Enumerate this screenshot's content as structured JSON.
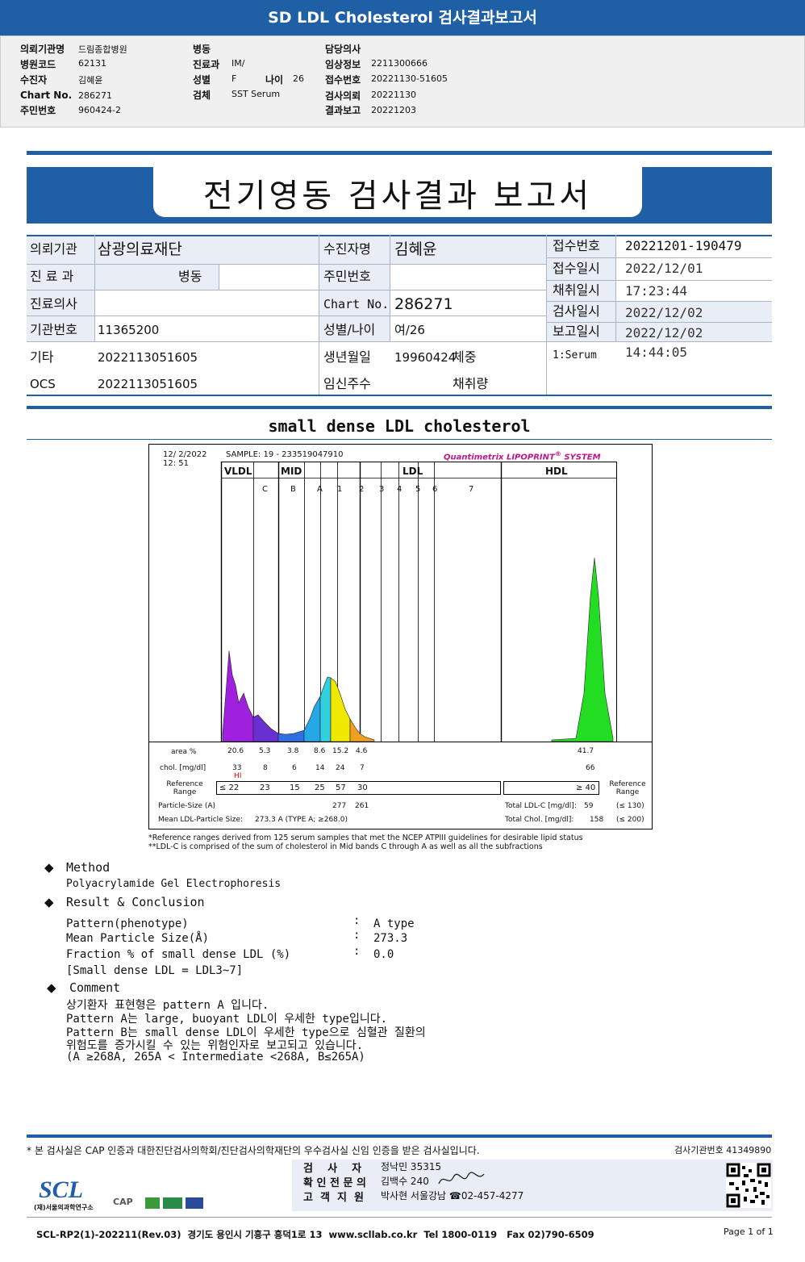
{
  "banner": {
    "title": "SD LDL Cholesterol 검사결과보고서"
  },
  "top_info": {
    "col1": [
      {
        "label": "의뢰기관명",
        "value": "드림종합병원"
      },
      {
        "label": "병원코드",
        "value": "62131"
      },
      {
        "label": "수진자",
        "value": "김혜윤"
      },
      {
        "label": "Chart No.",
        "value": "286271"
      },
      {
        "label": "주민번호",
        "value": "960424-2"
      }
    ],
    "col2": [
      {
        "label": "병동",
        "value": ""
      },
      {
        "label": "진료과",
        "value": "IM/"
      },
      {
        "label": "성별",
        "value": "F"
      },
      {
        "label": "검체",
        "value": "SST Serum"
      }
    ],
    "age_label": "나이",
    "age_value": "26",
    "col3": [
      {
        "label": "담당의사",
        "value": ""
      },
      {
        "label": "임상정보",
        "value": "2211300666"
      },
      {
        "label": "접수번호",
        "value": "20221130-51605"
      },
      {
        "label": "검사의뢰",
        "value": "20221130"
      },
      {
        "label": "결과보고",
        "value": "20221203"
      }
    ]
  },
  "report": {
    "title": "전기영동 검사결과 보고서"
  },
  "info": {
    "r1": {
      "l1": "의뢰기관",
      "v1": "삼광의료재단",
      "l2": "수진자명",
      "v2": "김혜윤",
      "l3": "접수번호",
      "v3": "20221201-190479"
    },
    "r2": {
      "l1": "진 료 과",
      "v1": "병동",
      "l2": "주민번호",
      "v2": "",
      "l3": "접수일시",
      "v3": "2022/12/01 17:23:44"
    },
    "r2b": {
      "l3": "채취일시",
      "v3": ""
    },
    "r3": {
      "l1": "진료의사",
      "v1": "",
      "l2": "Chart No.",
      "v2": "286271",
      "l3": "검사일시",
      "v3": "2022/12/02"
    },
    "r4": {
      "l1": "기관번호",
      "v1": "11365200",
      "l2": "성별/나이",
      "v2": "여/26",
      "l3": "보고일시",
      "v3": "2022/12/02 14:44:05"
    },
    "r5": {
      "l1": "기타",
      "v1": "2022113051605",
      "l2": "생년월일",
      "v2": "19960424",
      "v2b": "체중",
      "v3": "1:Serum"
    },
    "r6": {
      "l1": "OCS",
      "v1": "2022113051605",
      "l2": "임신주수",
      "v2b": "채취량"
    }
  },
  "section_title": "small dense LDL cholesterol",
  "chart_data": {
    "type": "area",
    "datetime": "12/ 2/2022",
    "time": "12: 51",
    "sample": "SAMPLE:  19 - 233519047910",
    "brand": "Quantimetrix LIPOPRINT",
    "brand_mark": "®",
    "brand_suffix": " SYSTEM",
    "groups": [
      "VLDL",
      "MID",
      "LDL",
      "HDL"
    ],
    "bands": [
      "C",
      "B",
      "A",
      "1",
      "2",
      "3",
      "4",
      "5",
      "6",
      "7"
    ],
    "area_label": "area %",
    "area_values": [
      "20.6",
      "5.3",
      "3.8",
      "8.6",
      "15.2",
      "4.6",
      "41.7"
    ],
    "chol_label": "chol. [mg/dl]",
    "chol_values": [
      "33",
      "8",
      "6",
      "14",
      "24",
      "7",
      "66"
    ],
    "hi_flag": "HI",
    "ref_label": "Reference Range",
    "ref_values": [
      "≤ 22",
      "23",
      "15",
      "25",
      "57",
      "30"
    ],
    "ref_hdl": "≥ 40",
    "particle_label": "Particle-Size (A)",
    "particle_values": [
      "277",
      "261"
    ],
    "mean_label": "Mean LDL-Particle Size:",
    "mean_value": "273.3  A   (TYPE A; ≥268.0)",
    "total_ldl_label": "Total LDL-C [mg/dl]:",
    "total_ldl_value": "59",
    "total_ldl_ref": "(≤ 130)",
    "total_chol_label": "Total Chol. [mg/dl]:",
    "total_chol_value": "158",
    "total_chol_ref": "(≤ 200)",
    "peaks": {
      "vldl": 20.6,
      "c": 5.3,
      "b": 3.8,
      "a": 8.6,
      "ldl1": 15.2,
      "ldl2": 4.6,
      "hdl": 41.7
    },
    "colors": {
      "vldl": "#a020e0",
      "c": "#6a2fd0",
      "b": "#2f6fe0",
      "a": "#24a8e8",
      "ldl1": "#2fd0e0",
      "ldl1b": "#f0e800",
      "ldl2": "#f0a020",
      "hdl": "#22dd22"
    }
  },
  "footnotes": [
    "*Reference ranges derived from 125 serum samples that met the NCEP ATPIII guidelines for desirable lipid status",
    "**LDL-C is comprised of the sum of cholesterol in Mid bands C through A as well as all the subfractions"
  ],
  "method": {
    "title": "Method",
    "text": "Polyacrylamide Gel Electrophoresis",
    "result_title": "Result & Conclusion",
    "rows": [
      {
        "label": "Pattern(phenotype)",
        "value": "A type"
      },
      {
        "label": "Mean Particle Size(Å)",
        "value": "273.3"
      },
      {
        "label": "Fraction % of small dense LDL (%)",
        "value": "0.0"
      }
    ],
    "row_note": "[Small dense LDL = LDL3~7]",
    "colon": ":",
    "comment_title": "Comment",
    "comment_lines": [
      "상기환자 표현형은 pattern A 입니다.",
      "Pattern A는 large, buoyant LDL이 우세한 type입니다.",
      "Pattern B는 small dense LDL이 우세한 type으로 심혈관 질환의",
      "위험도를 증가시킬 수 있는 위험인자로 보고되고 있습니다.",
      "(A ≥268A, 265A < Intermediate <268A, B≤265A)"
    ]
  },
  "footer": {
    "cert": "* 본 검사실은 CAP 인증과 대한진단검사의학회/진단검사의학재단의 우수검사실 신임 인증을 받은 검사실입니다.",
    "agency": "검사기관번호 41349890",
    "staff": [
      {
        "role": "검    사    자",
        "value": "정낙민 35315"
      },
      {
        "role": "확 인 전 문 의",
        "value": "김백수 240"
      },
      {
        "role": "고  객  지  원",
        "value": "박사현 서울강남 ☎02-457-4277"
      }
    ],
    "logo": "SCL",
    "logo_sub": "(재)서울의과학연구소",
    "cap": "CAP",
    "address": "SCL-RP2(1)-202211(Rev.03)  경기도 용인시 기흥구 흥덕1로 13  www.scllab.co.kr  Tel 1800-0119   Fax 02)790-6509",
    "page": "Page 1 of 1"
  }
}
